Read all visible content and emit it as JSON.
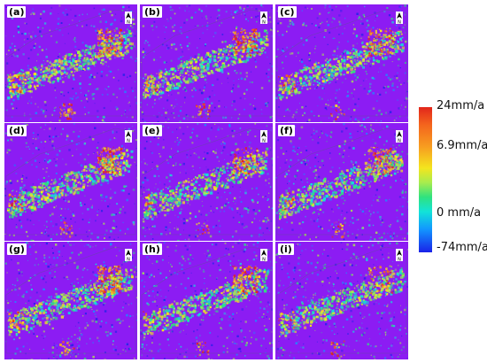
{
  "panels": [
    {
      "label": "(a)"
    },
    {
      "label": "(b)"
    },
    {
      "label": "(c)"
    },
    {
      "label": "(d)"
    },
    {
      "label": "(e)"
    },
    {
      "label": "(f)"
    },
    {
      "label": "(g)"
    },
    {
      "label": "(h)"
    },
    {
      "label": "(i)"
    }
  ],
  "colorbar": {
    "labels": [
      "24mm/a",
      "6.9mm/a",
      "0 mm/a",
      "-74mm/a"
    ],
    "colors": [
      "#e2261b",
      "#f4641d",
      "#f7a020",
      "#f4e51e",
      "#a7ec4e",
      "#2fe27f",
      "#12e3d8",
      "#1297ff",
      "#1a22e8"
    ]
  },
  "background_color": "#8c1cf3"
}
